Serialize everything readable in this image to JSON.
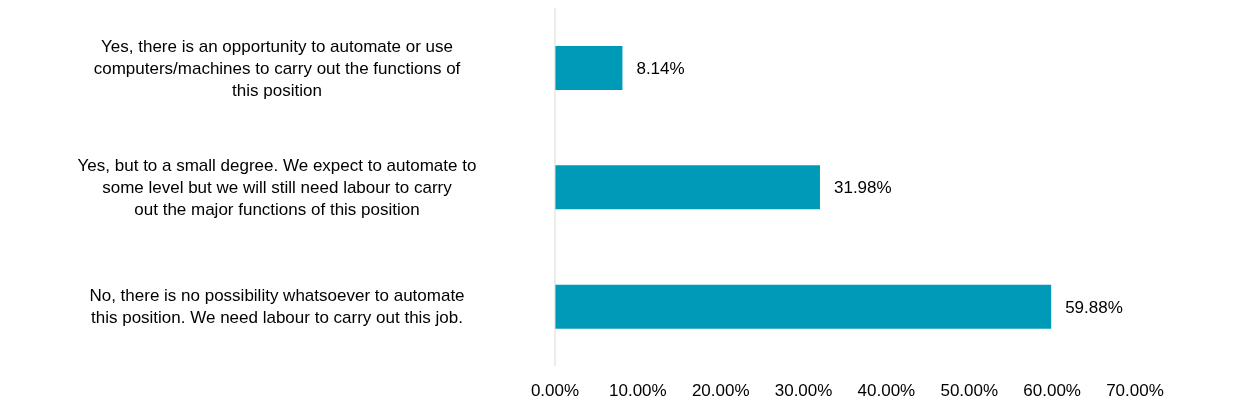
{
  "chart_data": {
    "type": "bar",
    "orientation": "horizontal",
    "categories": [
      "Yes, there is an opportunity to automate or use computers/machines to carry out the functions of this position",
      "Yes, but to a small degree. We expect to automate to some level but we will still need labour to carry out the major functions of this position",
      "No, there is no possibility whatsoever to automate this position. We need labour to carry out this job."
    ],
    "values": [
      8.14,
      31.98,
      59.88
    ],
    "value_labels": [
      "8.14%",
      "31.98%",
      "59.88%"
    ],
    "color": "#009ab9",
    "xlim": [
      0,
      70
    ],
    "xticks": [
      {
        "value": 0,
        "label": "0.00%"
      },
      {
        "value": 10,
        "label": "10.00%"
      },
      {
        "value": 20,
        "label": "20.00%"
      },
      {
        "value": 30,
        "label": "30.00%"
      },
      {
        "value": 40,
        "label": "40.00%"
      },
      {
        "value": 50,
        "label": "50.00%"
      },
      {
        "value": 60,
        "label": "60.00%"
      },
      {
        "value": 70,
        "label": "70.00%"
      }
    ],
    "grid": false,
    "legend": false
  }
}
